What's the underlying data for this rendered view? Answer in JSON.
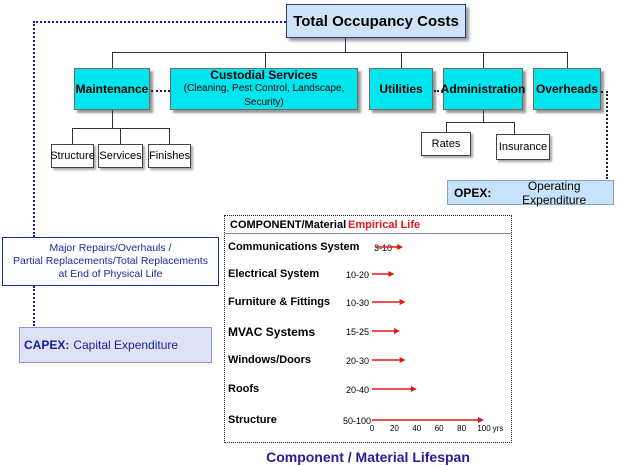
{
  "title": "Total Occupancy Costs",
  "categories": {
    "maintenance": "Maintenance",
    "custodial": {
      "title": "Custodial Services",
      "detail": "(Cleaning, Pest Control, Landscape, Security)"
    },
    "utilities": "Utilities",
    "administration": "Administration",
    "overheads": "Overheads"
  },
  "maintenance_items": [
    "Structure",
    "Services",
    "Finishes"
  ],
  "administration_items": [
    "Rates",
    "Insurance"
  ],
  "opex": {
    "abbr": "OPEX:",
    "label": "Operating Expenditure"
  },
  "capex": {
    "abbr": "CAPEX:",
    "label": "Capital Expenditure"
  },
  "major_repairs": [
    "Major Repairs/Overhauls /",
    "Partial Replacements/Total Replacements",
    "at End of Physical Life"
  ],
  "lifespan_table": {
    "header_component": "COMPONENT/Material",
    "header_life": "Empirical Life",
    "rows": [
      {
        "component": "Communications System",
        "range": "3-10",
        "min": 3,
        "max": 10
      },
      {
        "component": "Electrical System",
        "range": "10-20",
        "min": 10,
        "max": 20
      },
      {
        "component": "Furniture & Fittings",
        "range": "10-30",
        "min": 10,
        "max": 30
      },
      {
        "component": "MVAC Systems",
        "range": "15-25",
        "min": 15,
        "max": 25
      },
      {
        "component": "Windows/Doors",
        "range": "20-30",
        "min": 20,
        "max": 30
      },
      {
        "component": "Roofs",
        "range": "20-40",
        "min": 20,
        "max": 40
      },
      {
        "component": "Structure",
        "range": "50-100",
        "min": 50,
        "max": 100
      }
    ],
    "axis_ticks": [
      "0",
      "20",
      "40",
      "60",
      "80",
      "100"
    ],
    "axis_unit": "yrs",
    "axis_range": [
      0,
      100
    ],
    "arrow_color": "#e01818",
    "life_header_color": "#e01818"
  },
  "caption": "Component / Material Lifespan"
}
